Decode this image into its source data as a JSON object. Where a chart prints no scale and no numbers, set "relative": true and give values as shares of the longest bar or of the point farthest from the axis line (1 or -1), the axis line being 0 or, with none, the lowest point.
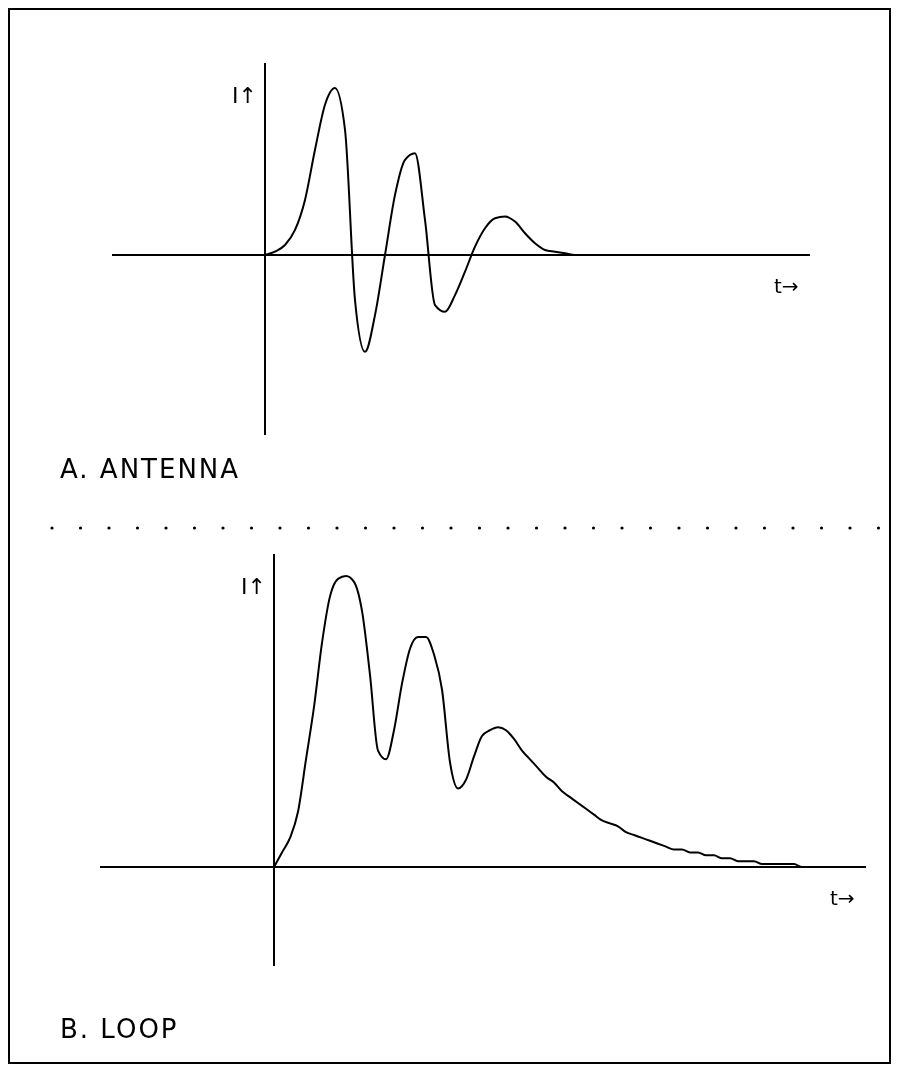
{
  "chart_data": [
    {
      "type": "line",
      "title": "A. ANTENNA",
      "xlabel": "t→",
      "ylabel": "I↑",
      "relative": true,
      "color": "#000000",
      "categories": [
        null,
        null,
        null,
        null,
        null,
        null,
        null,
        null,
        null,
        null,
        null,
        null,
        null,
        null,
        null,
        null,
        null,
        null,
        null,
        null,
        null,
        null,
        null,
        null,
        null,
        null,
        null,
        null,
        null,
        null,
        null,
        null,
        null,
        null,
        null,
        null,
        null,
        null,
        null,
        null,
        null,
        null,
        null,
        null,
        null,
        null,
        null,
        null,
        null,
        null,
        null,
        null,
        null,
        null,
        null,
        null,
        null,
        null,
        null,
        null,
        null,
        null,
        null,
        null,
        null,
        null,
        null,
        null,
        null,
        null
      ],
      "values": [
        null,
        null,
        null,
        null,
        null,
        null,
        null,
        null,
        null,
        null,
        null,
        null,
        null,
        null,
        null,
        0,
        0.02,
        0.06,
        0.15,
        0.33,
        0.63,
        0.9,
        1.0,
        0.75,
        -0.27,
        -0.58,
        -0.36,
        0.0,
        0.36,
        0.57,
        0.61,
        0.21,
        -0.3,
        -0.34,
        -0.24,
        -0.1,
        0.05,
        0.16,
        0.22,
        0.23,
        0.2,
        0.13,
        0.07,
        0.03,
        0.02,
        0.01,
        0,
        0,
        0,
        null,
        null,
        null,
        null,
        null,
        null,
        null,
        null,
        null,
        null,
        null,
        null,
        null,
        null,
        null,
        null,
        null,
        null,
        null,
        null,
        null
      ]
    },
    {
      "type": "line",
      "title": "B. LOOP",
      "xlabel": "t→",
      "ylabel": "I↑",
      "relative": true,
      "color": "#000000",
      "categories": [
        null,
        null,
        null,
        null,
        null,
        null,
        null,
        null,
        null,
        null,
        null,
        null,
        null,
        null,
        null,
        null,
        null,
        null,
        null,
        null,
        null,
        null,
        null,
        null,
        null,
        null,
        null,
        null,
        null,
        null,
        null,
        null,
        null,
        null,
        null,
        null,
        null,
        null,
        null,
        null,
        null,
        null,
        null,
        null,
        null,
        null,
        null,
        null,
        null,
        null,
        null,
        null,
        null,
        null,
        null,
        null,
        null,
        null,
        null,
        null,
        null,
        null,
        null,
        null,
        null,
        null,
        null,
        null,
        null,
        null,
        null,
        null,
        null,
        null,
        null,
        null,
        null,
        null,
        null,
        null,
        null,
        null,
        null,
        null,
        null,
        null,
        null,
        null,
        null,
        null,
        null,
        null,
        null,
        null,
        null,
        null
      ],
      "values": [
        null,
        null,
        null,
        null,
        null,
        null,
        null,
        null,
        null,
        null,
        null,
        null,
        null,
        null,
        null,
        null,
        null,
        null,
        null,
        null,
        null,
        0,
        0.05,
        0.1,
        0.19,
        0.37,
        0.55,
        0.77,
        0.93,
        0.99,
        1.0,
        0.98,
        0.88,
        0.66,
        0.4,
        0.37,
        0.47,
        0.63,
        0.75,
        0.79,
        0.79,
        0.73,
        0.61,
        0.36,
        0.27,
        0.3,
        0.38,
        0.45,
        0.47,
        0.48,
        0.47,
        0.44,
        0.4,
        0.37,
        0.34,
        0.31,
        0.29,
        0.26,
        0.24,
        0.22,
        0.2,
        0.18,
        0.16,
        0.15,
        0.14,
        0.12,
        0.11,
        0.1,
        0.09,
        0.08,
        0.07,
        0.06,
        0.06,
        0.05,
        0.05,
        0.04,
        0.04,
        0.03,
        0.03,
        0.02,
        0.02,
        0.02,
        0.01,
        0.01,
        0.01,
        0.01,
        0.01,
        0,
        0,
        null,
        null,
        null,
        null,
        null,
        null,
        null
      ]
    }
  ]
}
